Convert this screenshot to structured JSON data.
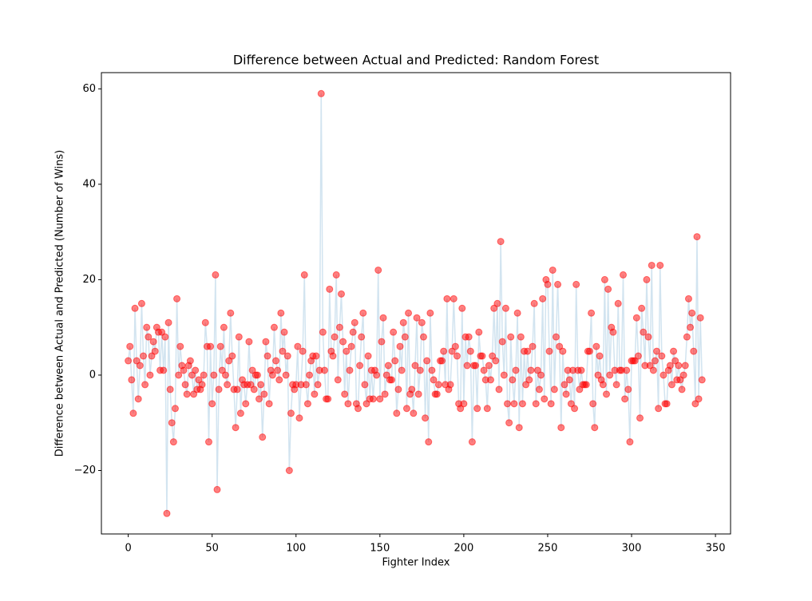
{
  "chart_data": {
    "type": "line-scatter",
    "title": "Difference between Actual and Predicted: Random Forest",
    "x_label": "Fighter Index",
    "y_label": "Difference between Actual and Predicted (Number of Wins)",
    "xlim": [
      -16,
      359
    ],
    "ylim": [
      -33.3,
      63.4
    ],
    "xticks": [
      0,
      50,
      100,
      150,
      200,
      250,
      300,
      350
    ],
    "yticks": [
      {
        "value": -20,
        "label": "−20"
      },
      0,
      20,
      40,
      60
    ],
    "marker_color": "#ff0000",
    "line_color": "#1f77b4",
    "x": [
      0,
      1,
      2,
      3,
      4,
      5,
      6,
      7,
      8,
      9,
      10,
      11,
      12,
      13,
      14,
      15,
      16,
      17,
      18,
      19,
      20,
      21,
      22,
      23,
      24,
      25,
      26,
      27,
      28,
      29,
      30,
      31,
      32,
      33,
      34,
      35,
      36,
      37,
      38,
      39,
      40,
      41,
      42,
      43,
      44,
      45,
      46,
      47,
      48,
      49,
      50,
      51,
      52,
      53,
      54,
      55,
      56,
      57,
      58,
      59,
      60,
      61,
      62,
      63,
      64,
      65,
      66,
      67,
      68,
      69,
      70,
      71,
      72,
      73,
      74,
      75,
      76,
      77,
      78,
      79,
      80,
      81,
      82,
      83,
      84,
      85,
      86,
      87,
      88,
      89,
      90,
      91,
      92,
      93,
      94,
      95,
      96,
      97,
      98,
      99,
      100,
      101,
      102,
      103,
      104,
      105,
      106,
      107,
      108,
      109,
      110,
      111,
      112,
      113,
      114,
      115,
      116,
      117,
      118,
      119,
      120,
      121,
      122,
      123,
      124,
      125,
      126,
      127,
      128,
      129,
      130,
      131,
      132,
      133,
      134,
      135,
      136,
      137,
      138,
      139,
      140,
      141,
      142,
      143,
      144,
      145,
      146,
      147,
      148,
      149,
      150,
      151,
      152,
      153,
      154,
      155,
      156,
      157,
      158,
      159,
      160,
      161,
      162,
      163,
      164,
      165,
      166,
      167,
      168,
      169,
      170,
      171,
      172,
      173,
      174,
      175,
      176,
      177,
      178,
      179,
      180,
      181,
      182,
      183,
      184,
      185,
      186,
      187,
      188,
      189,
      190,
      191,
      192,
      193,
      194,
      195,
      196,
      197,
      198,
      199,
      200,
      201,
      202,
      203,
      204,
      205,
      206,
      207,
      208,
      209,
      210,
      211,
      212,
      213,
      214,
      215,
      216,
      217,
      218,
      219,
      220,
      221,
      222,
      223,
      224,
      225,
      226,
      227,
      228,
      229,
      230,
      231,
      232,
      233,
      234,
      235,
      236,
      237,
      238,
      239,
      240,
      241,
      242,
      243,
      244,
      245,
      246,
      247,
      248,
      249,
      250,
      251,
      252,
      253,
      254,
      255,
      256,
      257,
      258,
      259,
      260,
      261,
      262,
      263,
      264,
      265,
      266,
      267,
      268,
      269,
      270,
      271,
      272,
      273,
      274,
      275,
      276,
      277,
      278,
      279,
      280,
      281,
      282,
      283,
      284,
      285,
      286,
      287,
      288,
      289,
      290,
      291,
      292,
      293,
      294,
      295,
      296,
      297,
      298,
      299,
      300,
      301,
      302,
      303,
      304,
      305,
      306,
      307,
      308,
      309,
      310,
      311,
      312,
      313,
      314,
      315,
      316,
      317,
      318,
      319,
      320,
      321,
      322,
      323,
      324,
      325,
      326,
      327,
      328,
      329,
      330,
      331,
      332,
      333,
      334,
      335,
      336,
      337,
      338,
      339,
      340,
      341,
      342
    ],
    "values": [
      3,
      6,
      -1,
      -8,
      14,
      3,
      -5,
      2,
      15,
      4,
      -2,
      10,
      8,
      0,
      4,
      7,
      5,
      10,
      9,
      1,
      9,
      1,
      8,
      -29,
      11,
      -3,
      -10,
      -14,
      -7,
      16,
      0,
      6,
      2,
      1,
      -2,
      -4,
      2,
      3,
      0,
      -4,
      1,
      -3,
      -1,
      -3,
      -2,
      0,
      11,
      6,
      -14,
      6,
      -6,
      0,
      21,
      -24,
      -3,
      6,
      1,
      10,
      0,
      -2,
      3,
      13,
      4,
      -3,
      -11,
      -3,
      8,
      -8,
      -1,
      -2,
      -6,
      -2,
      7,
      -2,
      1,
      -3,
      0,
      0,
      -5,
      -2,
      -13,
      -4,
      7,
      4,
      -6,
      1,
      0,
      10,
      3,
      1,
      -1,
      13,
      5,
      9,
      0,
      4,
      -20,
      -8,
      -2,
      -3,
      -2,
      6,
      -9,
      -2,
      5,
      21,
      -2,
      -6,
      0,
      3,
      4,
      -4,
      4,
      -2,
      1,
      59,
      9,
      1,
      -5,
      -5,
      18,
      5,
      4,
      8,
      21,
      -1,
      10,
      17,
      7,
      -4,
      5,
      -6,
      1,
      6,
      9,
      11,
      -6,
      -7,
      2,
      8,
      13,
      -2,
      -6,
      4,
      -5,
      1,
      -5,
      1,
      0,
      22,
      -5,
      7,
      12,
      -4,
      0,
      2,
      -1,
      -1,
      9,
      3,
      -8,
      -3,
      6,
      1,
      11,
      8,
      -7,
      13,
      -4,
      -3,
      -8,
      2,
      12,
      -4,
      1,
      11,
      8,
      -9,
      3,
      -14,
      13,
      1,
      -1,
      -4,
      -4,
      -2,
      3,
      3,
      5,
      -2,
      16,
      -3,
      -2,
      5,
      16,
      6,
      4,
      -6,
      -7,
      14,
      -6,
      8,
      2,
      8,
      5,
      -14,
      2,
      2,
      -7,
      9,
      4,
      4,
      1,
      -1,
      -7,
      2,
      -1,
      4,
      14,
      3,
      15,
      -3,
      28,
      7,
      0,
      14,
      -6,
      -10,
      8,
      -1,
      -6,
      1,
      13,
      -11,
      8,
      -6,
      5,
      -2,
      5,
      -1,
      1,
      6,
      15,
      -6,
      1,
      -3,
      0,
      16,
      -5,
      20,
      19,
      5,
      -6,
      22,
      -3,
      8,
      19,
      6,
      -11,
      5,
      -2,
      -4,
      1,
      -1,
      -6,
      1,
      -7,
      19,
      1,
      -3,
      1,
      -2,
      -2,
      -2,
      5,
      5,
      13,
      -6,
      -11,
      6,
      0,
      4,
      -1,
      -2,
      20,
      -4,
      18,
      0,
      10,
      9,
      1,
      -2,
      15,
      1,
      1,
      21,
      -5,
      1,
      -3,
      -14,
      3,
      3,
      3,
      12,
      4,
      -9,
      14,
      9,
      2,
      20,
      8,
      2,
      23,
      1,
      3,
      5,
      -7,
      23,
      4,
      0,
      -6,
      -6,
      1,
      2,
      -2,
      5,
      3,
      -1,
      2,
      -1,
      -3,
      0,
      2,
      8,
      16,
      10,
      13,
      5,
      -6,
      29,
      -5,
      12,
      -1
    ]
  }
}
